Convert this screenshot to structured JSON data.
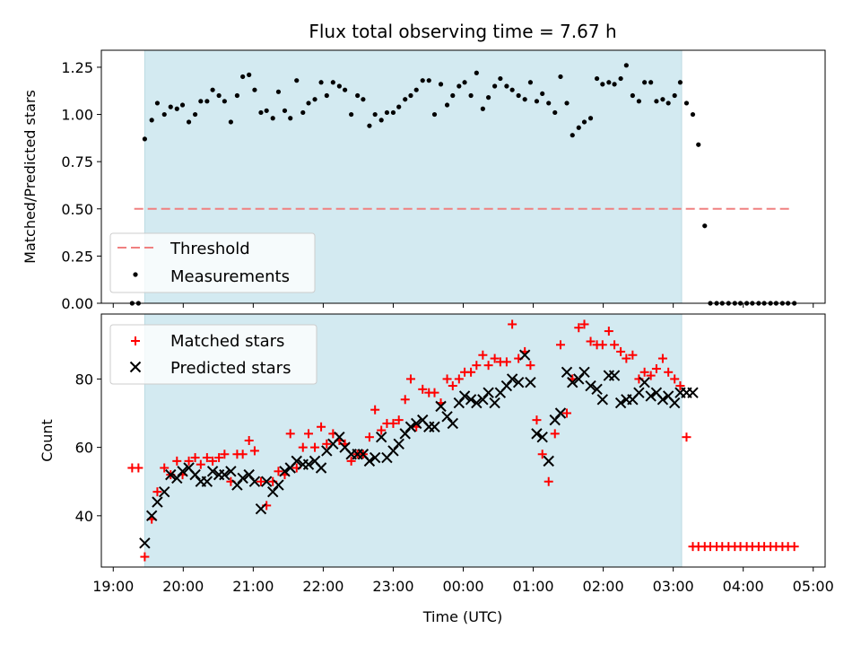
{
  "chart_data": {
    "type": "scatter",
    "title": "Flux total observing time = 7.67 h",
    "xlabel": "Time (UTC)",
    "x_ticks": [
      {
        "h": 19,
        "label": "19:00"
      },
      {
        "h": 20,
        "label": "20:00"
      },
      {
        "h": 21,
        "label": "21:00"
      },
      {
        "h": 22,
        "label": "22:00"
      },
      {
        "h": 23,
        "label": "23:00"
      },
      {
        "h": 24,
        "label": "00:00"
      },
      {
        "h": 25,
        "label": "01:00"
      },
      {
        "h": 26,
        "label": "02:00"
      },
      {
        "h": 27,
        "label": "03:00"
      },
      {
        "h": 28,
        "label": "04:00"
      },
      {
        "h": 29,
        "label": "05:00"
      }
    ],
    "xlim": [
      18.83,
      29.17
    ],
    "observing_span": [
      19.45,
      27.12
    ],
    "observing_span_color": "#d3eaf1",
    "top_panel": {
      "ylabel": "Matched/Predicted stars",
      "ylim": [
        0,
        1.34
      ],
      "y_ticks": [
        {
          "v": 0,
          "label": "0.00"
        },
        {
          "v": 0.25,
          "label": "0.25"
        },
        {
          "v": 0.5,
          "label": "0.50"
        },
        {
          "v": 0.75,
          "label": "0.75"
        },
        {
          "v": 1.0,
          "label": "1.00"
        },
        {
          "v": 1.25,
          "label": "1.25"
        }
      ],
      "threshold": {
        "name": "Threshold",
        "value": 0.5,
        "x_range": [
          19.3,
          28.7
        ],
        "color": "#f08080"
      },
      "measurements_name": "Measurements",
      "measurements_color": "#000000",
      "x": [
        19.27,
        19.36,
        19.45,
        19.55,
        19.63,
        19.73,
        19.82,
        19.91,
        19.99,
        20.08,
        20.17,
        20.25,
        20.34,
        20.42,
        20.51,
        20.59,
        20.68,
        20.77,
        20.85,
        20.94,
        21.02,
        21.11,
        21.19,
        21.28,
        21.36,
        21.45,
        21.53,
        21.62,
        21.71,
        21.79,
        21.88,
        21.97,
        22.05,
        22.14,
        22.23,
        22.31,
        22.4,
        22.49,
        22.57,
        22.66,
        22.74,
        22.83,
        22.91,
        23.0,
        23.08,
        23.17,
        23.25,
        23.33,
        23.42,
        23.51,
        23.59,
        23.68,
        23.77,
        23.85,
        23.94,
        24.02,
        24.11,
        24.19,
        24.28,
        24.36,
        24.45,
        24.53,
        24.62,
        24.7,
        24.79,
        24.88,
        24.96,
        25.05,
        25.13,
        25.22,
        25.31,
        25.39,
        25.48,
        25.56,
        25.65,
        25.73,
        25.82,
        25.91,
        25.99,
        26.08,
        26.16,
        26.25,
        26.33,
        26.42,
        26.51,
        26.59,
        26.68,
        26.76,
        26.85,
        26.93,
        27.02,
        27.1,
        27.19,
        27.28,
        27.36,
        27.45,
        27.53,
        27.62,
        27.7,
        27.79,
        27.88,
        27.96,
        28.05,
        28.13,
        28.22,
        28.3,
        28.39,
        28.47,
        28.56,
        28.64,
        28.73
      ],
      "values": [
        0.0,
        0.0,
        0.87,
        0.97,
        1.06,
        1.0,
        1.04,
        1.03,
        1.05,
        0.96,
        1.0,
        1.07,
        1.07,
        1.13,
        1.1,
        1.07,
        0.96,
        1.1,
        1.2,
        1.21,
        1.13,
        1.01,
        1.02,
        0.98,
        1.12,
        1.02,
        0.98,
        1.18,
        1.01,
        1.06,
        1.08,
        1.17,
        1.1,
        1.17,
        1.15,
        1.13,
        1.0,
        1.1,
        1.08,
        0.94,
        1.0,
        0.97,
        1.01,
        1.01,
        1.04,
        1.08,
        1.1,
        1.13,
        1.18,
        1.18,
        1.0,
        1.16,
        1.05,
        1.1,
        1.15,
        1.17,
        1.1,
        1.22,
        1.03,
        1.09,
        1.15,
        1.19,
        1.15,
        1.13,
        1.1,
        1.08,
        1.17,
        1.07,
        1.11,
        1.06,
        1.01,
        1.2,
        1.06,
        0.89,
        0.93,
        0.96,
        0.98,
        1.19,
        1.16,
        1.17,
        1.16,
        1.19,
        1.26,
        1.1,
        1.07,
        1.17,
        1.17,
        1.07,
        1.08,
        1.06,
        1.1,
        1.17,
        1.06,
        1.0,
        0.84,
        0.41,
        0.0,
        0.0,
        0.0,
        0.0,
        0.0,
        0.0,
        0.0,
        0.0,
        0.0,
        0.0,
        0.0,
        0.0,
        0.0,
        0.0,
        0.0
      ]
    },
    "bottom_panel": {
      "ylabel": "Count",
      "ylim": [
        25,
        99
      ],
      "y_ticks": [
        {
          "v": 40,
          "label": "40"
        },
        {
          "v": 60,
          "label": "60"
        },
        {
          "v": 80,
          "label": "80"
        }
      ],
      "series": [
        {
          "name": "Matched stars",
          "marker": "plus",
          "color": "#ff0000",
          "x": [
            19.27,
            19.36,
            19.45,
            19.55,
            19.63,
            19.73,
            19.82,
            19.91,
            19.99,
            20.08,
            20.17,
            20.25,
            20.34,
            20.42,
            20.51,
            20.59,
            20.68,
            20.77,
            20.85,
            20.94,
            21.02,
            21.11,
            21.19,
            21.28,
            21.36,
            21.45,
            21.53,
            21.62,
            21.71,
            21.79,
            21.88,
            21.97,
            22.05,
            22.14,
            22.23,
            22.31,
            22.4,
            22.49,
            22.57,
            22.66,
            22.74,
            22.83,
            22.91,
            23.0,
            23.08,
            23.17,
            23.25,
            23.33,
            23.42,
            23.51,
            23.59,
            23.68,
            23.77,
            23.85,
            23.94,
            24.02,
            24.11,
            24.19,
            24.28,
            24.36,
            24.45,
            24.53,
            24.62,
            24.7,
            24.79,
            24.88,
            24.96,
            25.05,
            25.13,
            25.22,
            25.31,
            25.39,
            25.48,
            25.56,
            25.65,
            25.73,
            25.82,
            25.91,
            25.99,
            26.08,
            26.16,
            26.25,
            26.33,
            26.42,
            26.51,
            26.59,
            26.68,
            26.76,
            26.85,
            26.93,
            27.02,
            27.1,
            27.19,
            27.28,
            27.36,
            27.45,
            27.53,
            27.62,
            27.7,
            27.79,
            27.88,
            27.96,
            28.05,
            28.13,
            28.22,
            28.3,
            28.39,
            28.47,
            28.56,
            28.64,
            28.73
          ],
          "values": [
            54,
            54,
            28,
            39,
            47,
            54,
            52,
            56,
            52,
            56,
            57,
            55,
            57,
            56,
            57,
            58,
            50,
            58,
            58,
            62,
            59,
            50,
            43,
            50,
            53,
            52,
            64,
            54,
            60,
            64,
            60,
            66,
            61,
            64,
            62,
            61,
            56,
            58,
            58,
            63,
            71,
            65,
            67,
            67,
            68,
            74,
            80,
            66,
            77,
            76,
            76,
            73,
            80,
            78,
            80,
            82,
            82,
            84,
            87,
            84,
            86,
            85,
            85,
            96,
            86,
            88,
            84,
            68,
            58,
            50,
            64,
            90,
            70,
            80,
            95,
            96,
            91,
            90,
            90,
            94,
            90,
            88,
            86,
            87,
            80,
            82,
            81,
            83,
            86,
            82,
            80,
            78,
            63,
            31,
            31,
            31,
            31,
            31,
            31,
            31,
            31,
            31,
            31,
            31,
            31,
            31,
            31,
            31,
            31,
            31,
            31
          ]
        },
        {
          "name": "Predicted stars",
          "marker": "x",
          "color": "#000000",
          "x": [
            19.45,
            19.55,
            19.63,
            19.73,
            19.82,
            19.91,
            19.99,
            20.08,
            20.17,
            20.25,
            20.34,
            20.42,
            20.51,
            20.59,
            20.68,
            20.77,
            20.85,
            20.94,
            21.02,
            21.11,
            21.19,
            21.28,
            21.36,
            21.45,
            21.53,
            21.62,
            21.71,
            21.79,
            21.88,
            21.97,
            22.05,
            22.14,
            22.23,
            22.31,
            22.4,
            22.49,
            22.57,
            22.66,
            22.74,
            22.83,
            22.91,
            23.0,
            23.08,
            23.17,
            23.25,
            23.33,
            23.42,
            23.51,
            23.59,
            23.68,
            23.77,
            23.85,
            23.94,
            24.02,
            24.11,
            24.19,
            24.28,
            24.36,
            24.45,
            24.53,
            24.62,
            24.7,
            24.79,
            24.88,
            24.96,
            25.05,
            25.13,
            25.22,
            25.31,
            25.39,
            25.48,
            25.56,
            25.65,
            25.73,
            25.82,
            25.91,
            25.99,
            26.08,
            26.16,
            26.25,
            26.33,
            26.42,
            26.51,
            26.59,
            26.68,
            26.76,
            26.85,
            26.93,
            27.02,
            27.1,
            27.19,
            27.28
          ],
          "values": [
            32,
            40,
            44,
            47,
            52,
            51,
            53,
            54,
            52,
            50,
            50,
            53,
            52,
            52,
            53,
            49,
            51,
            52,
            50,
            42,
            50,
            47,
            49,
            53,
            54,
            56,
            55,
            55,
            56,
            54,
            59,
            61,
            63,
            60,
            58,
            58,
            58,
            56,
            57,
            63,
            57,
            59,
            61,
            64,
            66,
            67,
            68,
            66,
            66,
            72,
            69,
            67,
            73,
            75,
            74,
            73,
            74,
            76,
            73,
            76,
            78,
            80,
            79,
            87,
            79,
            64,
            63,
            56,
            68,
            70,
            82,
            79,
            80,
            82,
            78,
            77,
            74,
            81,
            81,
            73,
            74,
            74,
            76,
            79,
            75,
            76,
            74,
            75,
            73,
            76,
            76,
            76
          ]
        }
      ]
    }
  }
}
